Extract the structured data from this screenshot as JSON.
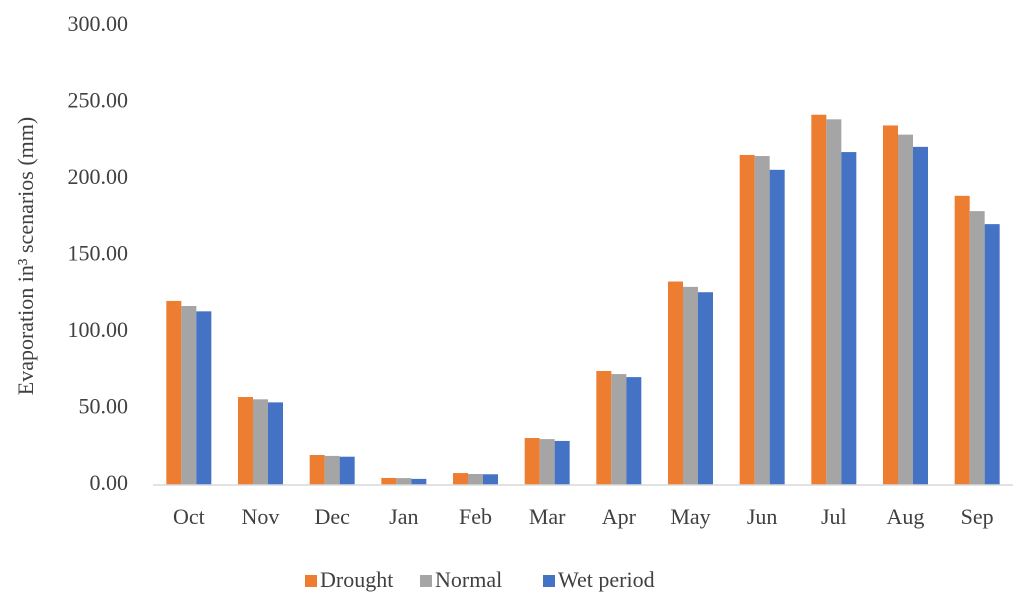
{
  "chart_data": {
    "type": "bar",
    "y_label": "Evaporation in³ scenarios (mm)",
    "categories": [
      "Oct",
      "Nov",
      "Dec",
      "Jan",
      "Feb",
      "Mar",
      "Apr",
      "May",
      "Jun",
      "Jul",
      "Aug",
      "Sep"
    ],
    "series": [
      {
        "name": "Drought",
        "color": "#ed7d31",
        "values": [
          120.3,
          57.5,
          19.6,
          4.6,
          7.8,
          30.7,
          74.5,
          133,
          215.7,
          242,
          235,
          189
        ]
      },
      {
        "name": "Normal",
        "color": "#a5a5a5",
        "values": [
          117,
          56,
          19,
          4.5,
          7.2,
          30,
          72.5,
          129.5,
          215,
          239,
          229,
          179
        ]
      },
      {
        "name": "Wet period",
        "color": "#4472c4",
        "values": [
          113.5,
          54,
          18.5,
          4,
          7,
          28.8,
          70.5,
          126,
          206,
          217.6,
          221,
          170.5
        ]
      }
    ],
    "ylim": [
      0,
      300
    ],
    "yticks": [
      {
        "value": 0,
        "label": "0.00"
      },
      {
        "value": 50,
        "label": "50.00"
      },
      {
        "value": 100,
        "label": "100.00"
      },
      {
        "value": 150,
        "label": "150.00"
      },
      {
        "value": 200,
        "label": "200.00"
      },
      {
        "value": 250,
        "label": "250.00"
      },
      {
        "value": 300,
        "label": "300.00"
      }
    ],
    "grid": false,
    "legend": "bottom"
  }
}
